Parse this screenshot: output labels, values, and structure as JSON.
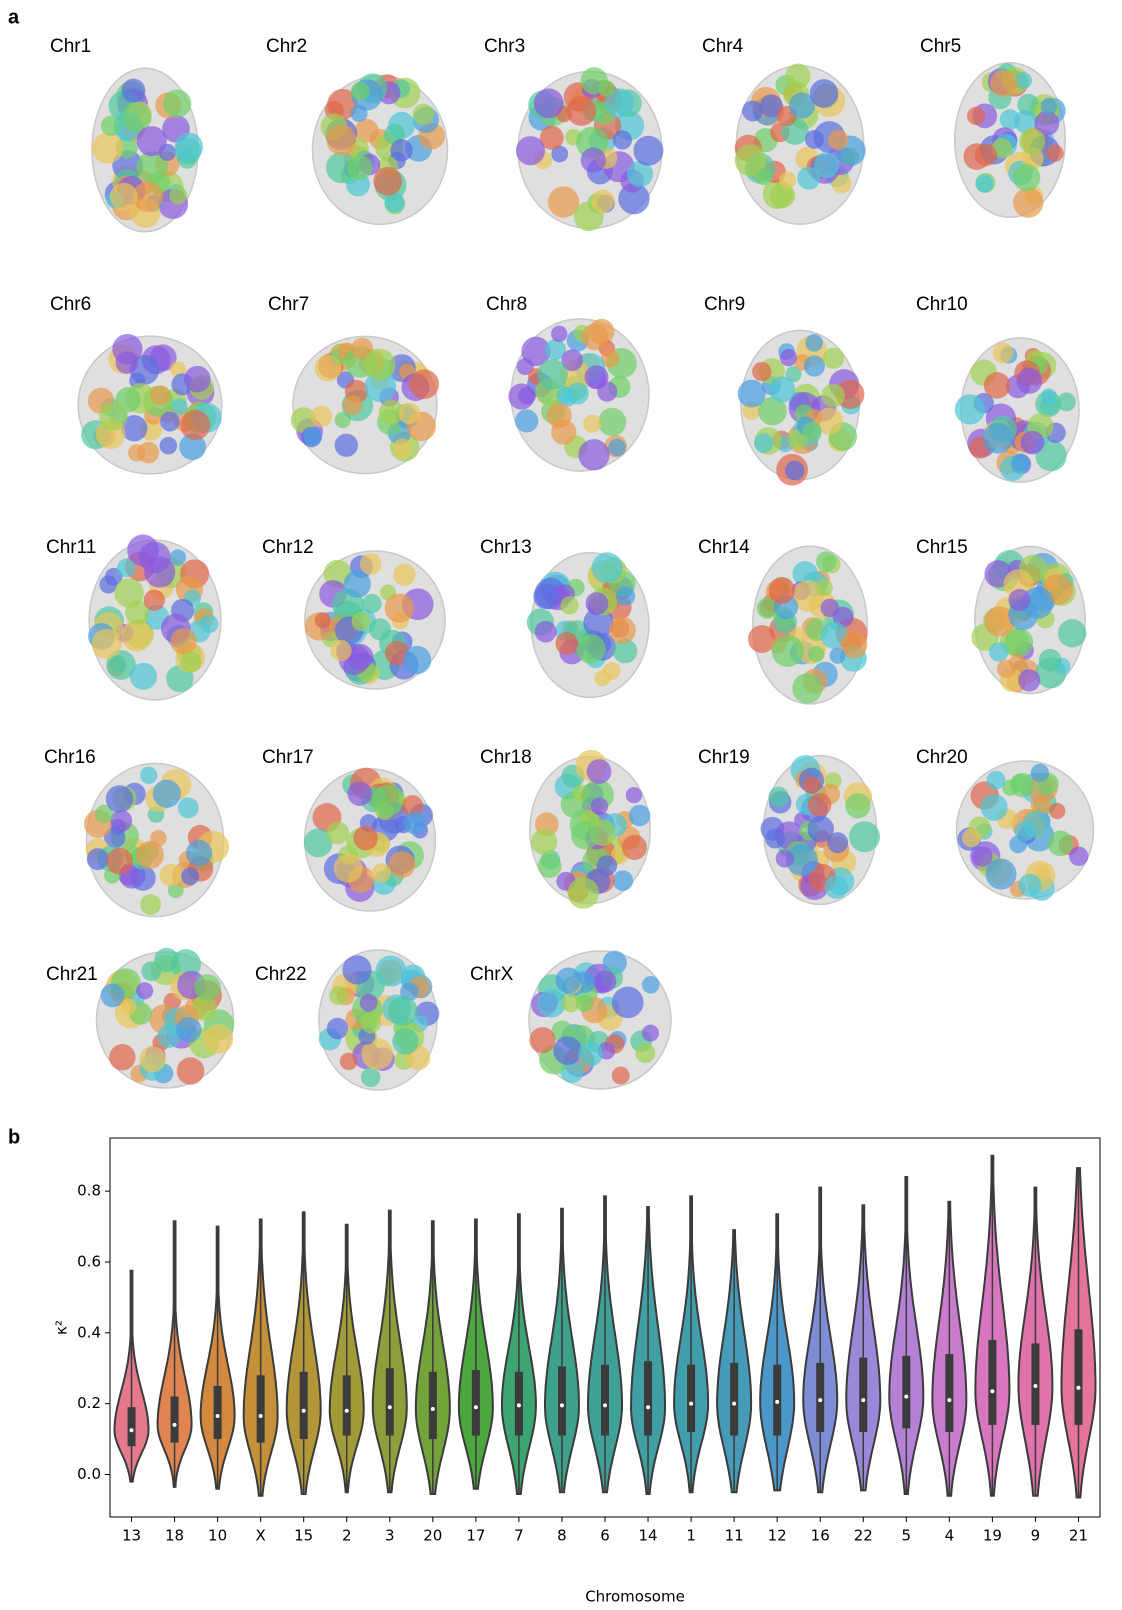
{
  "panel_a": {
    "label": "a",
    "structures": [
      "Chr1",
      "Chr2",
      "Chr3",
      "Chr4",
      "Chr5",
      "Chr6",
      "Chr7",
      "Chr8",
      "Chr9",
      "Chr10",
      "Chr11",
      "Chr12",
      "Chr13",
      "Chr14",
      "Chr15",
      "Chr16",
      "Chr17",
      "Chr18",
      "Chr19",
      "Chr20",
      "Chr21",
      "Chr22",
      "ChrX"
    ]
  },
  "chart_data": {
    "type": "violin",
    "panel_label": "b",
    "x_label": "Chromosome",
    "y_label": "κ²",
    "categories": [
      "13",
      "18",
      "10",
      "X",
      "15",
      "2",
      "3",
      "20",
      "17",
      "7",
      "8",
      "6",
      "14",
      "1",
      "11",
      "12",
      "16",
      "22",
      "5",
      "4",
      "19",
      "9",
      "21"
    ],
    "min": [
      -0.02,
      -0.035,
      -0.04,
      -0.06,
      -0.055,
      -0.05,
      -0.05,
      -0.055,
      -0.04,
      -0.055,
      -0.05,
      -0.05,
      -0.055,
      -0.05,
      -0.05,
      -0.045,
      -0.05,
      -0.045,
      -0.055,
      -0.06,
      -0.06,
      -0.06,
      -0.065
    ],
    "q1": [
      0.08,
      0.09,
      0.1,
      0.09,
      0.1,
      0.11,
      0.11,
      0.1,
      0.11,
      0.11,
      0.11,
      0.11,
      0.11,
      0.12,
      0.11,
      0.11,
      0.12,
      0.12,
      0.13,
      0.12,
      0.14,
      0.14,
      0.14
    ],
    "median": [
      0.125,
      0.14,
      0.165,
      0.165,
      0.18,
      0.18,
      0.19,
      0.185,
      0.19,
      0.195,
      0.195,
      0.195,
      0.19,
      0.2,
      0.2,
      0.205,
      0.21,
      0.21,
      0.22,
      0.21,
      0.235,
      0.25,
      0.245
    ],
    "q3": [
      0.19,
      0.22,
      0.25,
      0.28,
      0.29,
      0.28,
      0.3,
      0.29,
      0.295,
      0.29,
      0.305,
      0.31,
      0.32,
      0.31,
      0.315,
      0.31,
      0.315,
      0.33,
      0.335,
      0.34,
      0.38,
      0.37,
      0.41
    ],
    "max": [
      0.575,
      0.715,
      0.7,
      0.72,
      0.74,
      0.705,
      0.745,
      0.715,
      0.72,
      0.735,
      0.75,
      0.785,
      0.755,
      0.785,
      0.69,
      0.735,
      0.81,
      0.76,
      0.84,
      0.77,
      0.9,
      0.81,
      0.865
    ],
    "colors": [
      "#e5798c",
      "#e08452",
      "#d38a3e",
      "#c4913a",
      "#b29638",
      "#a19b38",
      "#8d9f3a",
      "#74a33b",
      "#4ba73e",
      "#3da571",
      "#3ea28a",
      "#3fa097",
      "#409fa2",
      "#429dac",
      "#459bb8",
      "#4b97c9",
      "#7e8ed6",
      "#9b88d9",
      "#b581d6",
      "#c97bcd",
      "#d876bf",
      "#e073ab",
      "#e5749a"
    ],
    "ylim": [
      -0.12,
      0.95
    ],
    "yticks": [
      {
        "value": 0,
        "label": "0.0"
      },
      0.2,
      0.4,
      0.6,
      0.8
    ]
  }
}
